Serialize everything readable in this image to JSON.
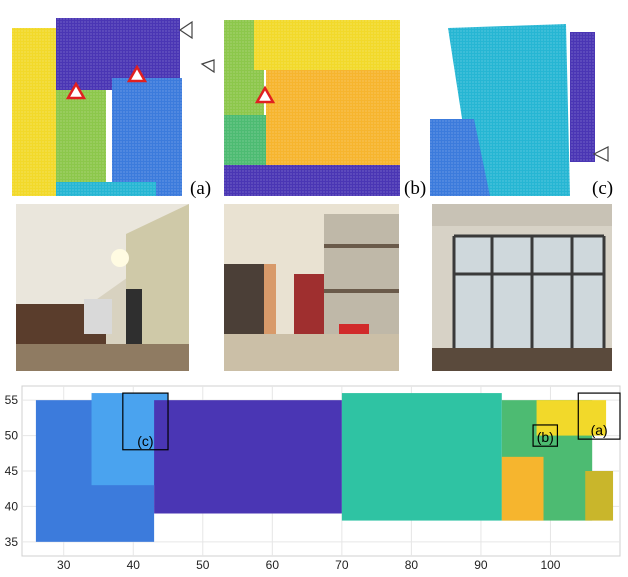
{
  "figure": {
    "panel_labels": [
      "(a)",
      "(b)",
      "(c)"
    ],
    "map_callouts": [
      "(c)",
      "(b)",
      "(a)"
    ],
    "colors": {
      "purple": "#4a36b4",
      "blue": "#3c7bdc",
      "light_blue": "#4aa3ef",
      "cyan": "#26b6d3",
      "teal": "#2fc3a3",
      "green": "#4dbb72",
      "lime": "#8cc74b",
      "yellow": "#f2d92a",
      "orange": "#f6b52e",
      "olive": "#c9b62b",
      "marker_red": "#e02020"
    }
  },
  "chart_data": {
    "type": "scatter",
    "xlim": [
      24,
      110
    ],
    "ylim": [
      33,
      57
    ],
    "x_ticks": [
      30,
      40,
      50,
      60,
      70,
      80,
      90,
      100
    ],
    "y_ticks": [
      35,
      40,
      45,
      50,
      55
    ],
    "grid": true,
    "regions": [
      {
        "color": "blue",
        "x": [
          26,
          43
        ],
        "y": [
          35,
          55
        ]
      },
      {
        "color": "light_blue",
        "x": [
          34,
          45
        ],
        "y": [
          43,
          56
        ]
      },
      {
        "color": "purple",
        "x": [
          43,
          70
        ],
        "y": [
          39,
          55
        ]
      },
      {
        "color": "teal",
        "x": [
          70,
          93
        ],
        "y": [
          38,
          56
        ]
      },
      {
        "color": "green",
        "x": [
          93,
          106
        ],
        "y": [
          38,
          55
        ]
      },
      {
        "color": "yellow",
        "x": [
          98,
          108
        ],
        "y": [
          50,
          55
        ]
      },
      {
        "color": "orange",
        "x": [
          93,
          99
        ],
        "y": [
          38,
          47
        ]
      },
      {
        "color": "olive",
        "x": [
          105,
          109
        ],
        "y": [
          38,
          45
        ]
      }
    ]
  }
}
